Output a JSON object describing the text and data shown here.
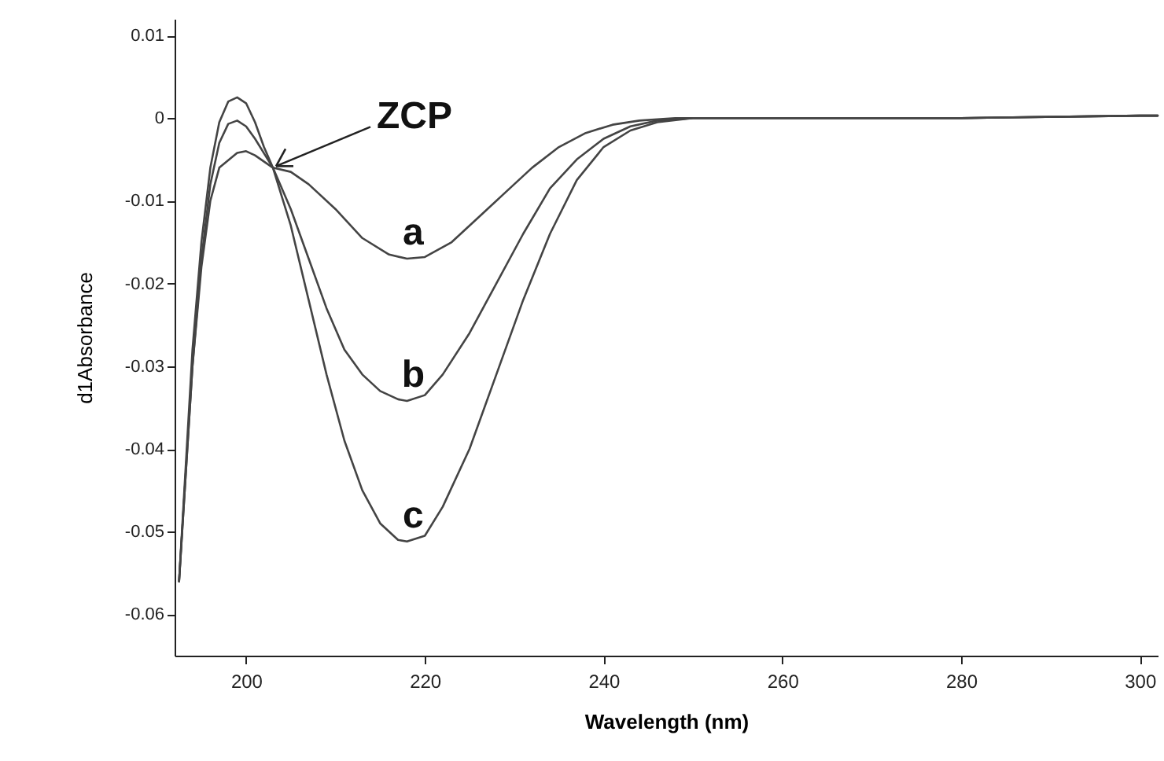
{
  "chart_data": {
    "type": "line",
    "xlabel": "Wavelength (nm)",
    "ylabel": "d1Absorbance",
    "xlim": [
      192,
      302
    ],
    "xticks": [
      200,
      220,
      240,
      260,
      280,
      300
    ],
    "ylim": [
      -0.065,
      0.012
    ],
    "yticks": [
      0.01,
      0,
      -0.01,
      -0.02,
      -0.03,
      -0.04,
      -0.05,
      -0.06
    ],
    "grid": false,
    "legend": false,
    "marker": "none",
    "line_style": "solid",
    "annotations": [
      {
        "text": "ZCP",
        "x": 203,
        "y": -0.006
      }
    ],
    "series": [
      {
        "name": "a",
        "color": "#444444",
        "x": [
          192.5,
          194,
          195,
          196,
          197,
          199,
          200,
          201,
          203,
          205,
          207,
          210,
          213,
          216,
          218,
          220,
          223,
          226,
          229,
          232,
          235,
          238,
          241,
          244,
          248,
          260,
          280,
          300,
          302
        ],
        "values": [
          -0.056,
          -0.03,
          -0.018,
          -0.01,
          -0.006,
          -0.0042,
          -0.004,
          -0.0045,
          -0.006,
          -0.0065,
          -0.008,
          -0.011,
          -0.0145,
          -0.0165,
          -0.017,
          -0.0168,
          -0.015,
          -0.012,
          -0.009,
          -0.006,
          -0.0035,
          -0.0018,
          -0.0008,
          -0.0003,
          0,
          0,
          0,
          0.0003,
          0.0003
        ]
      },
      {
        "name": "b",
        "color": "#444444",
        "x": [
          192.5,
          194,
          195,
          196,
          197,
          198,
          199,
          200,
          201,
          203,
          205,
          207,
          209,
          211,
          213,
          215,
          217,
          218,
          220,
          222,
          225,
          228,
          231,
          234,
          237,
          240,
          243,
          246,
          250,
          260,
          280,
          300,
          302
        ],
        "values": [
          -0.056,
          -0.03,
          -0.017,
          -0.008,
          -0.003,
          -0.0007,
          -0.0003,
          -0.001,
          -0.0025,
          -0.006,
          -0.011,
          -0.017,
          -0.023,
          -0.028,
          -0.031,
          -0.033,
          -0.034,
          -0.0342,
          -0.0335,
          -0.031,
          -0.026,
          -0.02,
          -0.014,
          -0.0085,
          -0.005,
          -0.0025,
          -0.001,
          -0.0003,
          0,
          0,
          0,
          0.0003,
          0.0003
        ]
      },
      {
        "name": "c",
        "color": "#444444",
        "x": [
          192.5,
          194,
          195,
          196,
          197,
          198,
          199,
          200,
          201,
          202,
          203,
          205,
          207,
          209,
          211,
          213,
          215,
          217,
          218,
          220,
          222,
          225,
          228,
          231,
          234,
          237,
          240,
          243,
          246,
          250,
          260,
          280,
          300,
          302
        ],
        "values": [
          -0.056,
          -0.028,
          -0.015,
          -0.006,
          -0.0005,
          0.002,
          0.0025,
          0.0018,
          -0.0005,
          -0.0035,
          -0.006,
          -0.013,
          -0.022,
          -0.031,
          -0.039,
          -0.045,
          -0.049,
          -0.051,
          -0.0512,
          -0.0505,
          -0.047,
          -0.04,
          -0.031,
          -0.022,
          -0.014,
          -0.0075,
          -0.0035,
          -0.0015,
          -0.0005,
          0,
          0,
          0,
          0.0003,
          0.0003
        ]
      }
    ]
  }
}
